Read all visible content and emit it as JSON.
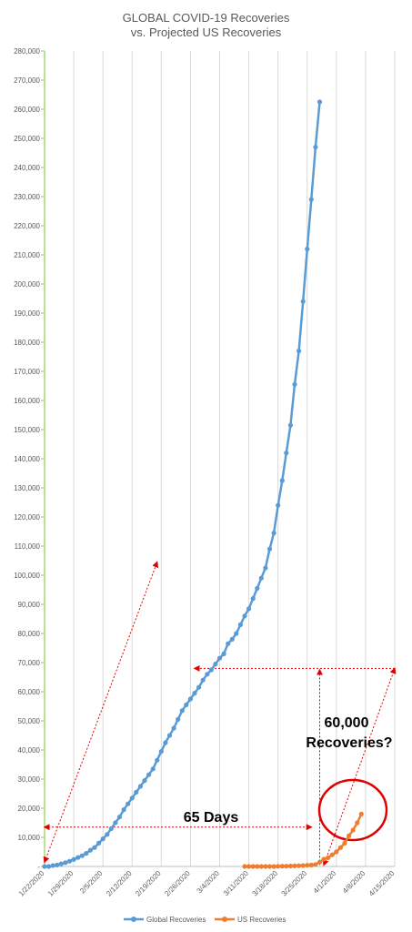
{
  "chart_data": {
    "type": "line",
    "title": [
      "GLOBAL COVID-19 Recoveries",
      "vs. Projected US Recoveries"
    ],
    "xlabel": "",
    "ylabel": "",
    "x_axis": {
      "min": "1/22/2020",
      "max": "4/15/2020",
      "tick_labels": [
        "1/22/2020",
        "1/29/2020",
        "2/5/2020",
        "2/12/2020",
        "2/19/2020",
        "2/26/2020",
        "3/4/2020",
        "3/11/2020",
        "3/18/2020",
        "3/25/2020",
        "4/1/2020",
        "4/8/2020",
        "4/15/2020"
      ]
    },
    "y_axis": {
      "min": 0,
      "max": 280000,
      "step": 10000,
      "tick_labels": [
        "-",
        "10,000",
        "20,000",
        "30,000",
        "40,000",
        "50,000",
        "60,000",
        "70,000",
        "80,000",
        "90,000",
        "100,000",
        "110,000",
        "120,000",
        "130,000",
        "140,000",
        "150,000",
        "160,000",
        "170,000",
        "180,000",
        "190,000",
        "200,000",
        "210,000",
        "220,000",
        "230,000",
        "240,000",
        "250,000",
        "260,000",
        "270,000",
        "280,000"
      ]
    },
    "grid": "vertical",
    "legend": "bottom",
    "series": [
      {
        "name": "Global Recoveries",
        "color": "#5b9bd5",
        "x": [
          "1/22/2020",
          "1/23/2020",
          "1/24/2020",
          "1/25/2020",
          "1/26/2020",
          "1/27/2020",
          "1/28/2020",
          "1/29/2020",
          "1/30/2020",
          "1/31/2020",
          "2/1/2020",
          "2/2/2020",
          "2/3/2020",
          "2/4/2020",
          "2/5/2020",
          "2/6/2020",
          "2/7/2020",
          "2/8/2020",
          "2/9/2020",
          "2/10/2020",
          "2/11/2020",
          "2/12/2020",
          "2/13/2020",
          "2/14/2020",
          "2/15/2020",
          "2/16/2020",
          "2/17/2020",
          "2/18/2020",
          "2/19/2020",
          "2/20/2020",
          "2/21/2020",
          "2/22/2020",
          "2/23/2020",
          "2/24/2020",
          "2/25/2020",
          "2/26/2020",
          "2/27/2020",
          "2/28/2020",
          "2/29/2020",
          "3/1/2020",
          "3/2/2020",
          "3/3/2020",
          "3/4/2020",
          "3/5/2020",
          "3/6/2020",
          "3/7/2020",
          "3/8/2020",
          "3/9/2020",
          "3/10/2020",
          "3/11/2020",
          "3/12/2020",
          "3/13/2020",
          "3/14/2020",
          "3/15/2020",
          "3/16/2020",
          "3/17/2020",
          "3/18/2020",
          "3/19/2020",
          "3/20/2020",
          "3/21/2020",
          "3/22/2020",
          "3/23/2020",
          "3/24/2020",
          "3/25/2020",
          "3/26/2020"
        ],
        "values": [
          0,
          0,
          300,
          500,
          900,
          1300,
          1800,
          2400,
          3100,
          3700,
          4500,
          5600,
          6500,
          8000,
          9500,
          11000,
          13000,
          15000,
          17000,
          19500,
          21500,
          23500,
          25500,
          27500,
          29500,
          31500,
          33500,
          36500,
          39500,
          42500,
          45000,
          47500,
          50500,
          53500,
          55500,
          57500,
          59500,
          61500,
          64000,
          66000,
          67500,
          69500,
          71500,
          73000,
          76500,
          78000,
          80000,
          83000,
          86000,
          88500,
          92000,
          95500,
          99000,
          102500,
          109000,
          114500,
          124000,
          132500,
          142000,
          151500,
          165500,
          177000,
          194000,
          212000,
          229000
        ]
      },
      {
        "name": "US Recoveries",
        "color": "#ed7d31",
        "x": [
          "3/10/2020",
          "3/11/2020",
          "3/12/2020",
          "3/13/2020",
          "3/14/2020",
          "3/15/2020",
          "3/16/2020",
          "3/17/2020",
          "3/18/2020",
          "3/19/2020",
          "3/20/2020",
          "3/21/2020",
          "3/22/2020",
          "3/23/2020",
          "3/24/2020",
          "3/25/2020",
          "3/26/2020",
          "3/27/2020",
          "3/28/2020",
          "3/29/2020",
          "3/30/2020",
          "3/31/2020",
          "4/1/2020",
          "4/2/2020",
          "4/3/2020",
          "4/4/2020",
          "4/5/2020",
          "4/6/2020",
          "4/7/2020"
        ],
        "values": [
          0,
          0,
          0,
          0,
          0,
          0,
          0,
          0,
          50,
          100,
          100,
          150,
          200,
          250,
          300,
          400,
          500,
          700,
          1500,
          2500,
          3000,
          4000,
          5000,
          6500,
          8000,
          10500,
          12500,
          15000,
          18000
        ]
      }
    ],
    "extra_global_points": [
      {
        "x": "3/27/2020",
        "y": 247000
      },
      {
        "x": "3/28/2020",
        "y": 262500
      }
    ],
    "annotations": [
      {
        "text": "65 Days",
        "type": "horizontal arrow from 1/22/2020 to 3/26/2020 at 13,500"
      },
      {
        "text": "60,000 Recoveries?",
        "type": "circle around projected US points, arrows up to 68,000"
      }
    ]
  }
}
